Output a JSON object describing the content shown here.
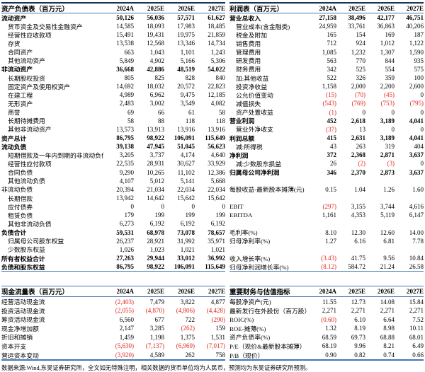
{
  "colors": {
    "rule_dark": "#16365c",
    "rule_blue": "#4176b4",
    "negative_red": "#e0281e"
  },
  "footer": {
    "text": "数据来源:Wind,东吴证券研究所，全文如无特殊注明，相关数据的货币单位均为人民币，预测均为东吴证券研究所预测。"
  },
  "tables": [
    {
      "id": "balance-sheet",
      "title": "资产负债表（百万元）",
      "columns": [
        "2024A",
        "2025E",
        "2026E",
        "2027E"
      ],
      "rows": [
        {
          "label": "流动资产",
          "bold": true,
          "values": [
            "50,126",
            "56,036",
            "57,571",
            "61,627"
          ]
        },
        {
          "label": "货币资金及交易性金融资产",
          "indent": true,
          "values": [
            "14,585",
            "18,093",
            "17,983",
            "18,485"
          ]
        },
        {
          "label": "经营性应收款项",
          "indent": true,
          "values": [
            "15,491",
            "19,431",
            "19,975",
            "21,859"
          ]
        },
        {
          "label": "存货",
          "indent": true,
          "values": [
            "13,538",
            "12,568",
            "13,346",
            "14,734"
          ]
        },
        {
          "label": "合同资产",
          "indent": true,
          "values": [
            "663",
            "1,043",
            "1,101",
            "1,243"
          ]
        },
        {
          "label": "其他流动资产",
          "indent": true,
          "values": [
            "5,849",
            "4,902",
            "5,166",
            "5,306"
          ]
        },
        {
          "label": "非流动资产",
          "bold": true,
          "values": [
            "36,668",
            "42,886",
            "48,519",
            "54,022"
          ]
        },
        {
          "label": "长期股权投资",
          "indent": true,
          "values": [
            "805",
            "825",
            "828",
            "840"
          ]
        },
        {
          "label": "固定资产及使用权资产",
          "indent": true,
          "values": [
            "14,692",
            "18,032",
            "20,572",
            "22,823"
          ]
        },
        {
          "label": "在建工程",
          "indent": true,
          "values": [
            "4,989",
            "6,962",
            "9,475",
            "12,185"
          ]
        },
        {
          "label": "无形资产",
          "indent": true,
          "values": [
            "2,483",
            "3,002",
            "3,549",
            "4,082"
          ]
        },
        {
          "label": "商誉",
          "indent": true,
          "values": [
            "69",
            "66",
            "61",
            "58"
          ]
        },
        {
          "label": "长期待摊费用",
          "indent": true,
          "values": [
            "58",
            "88",
            "118",
            "118"
          ]
        },
        {
          "label": "其他非流动资产",
          "indent": true,
          "values": [
            "13,573",
            "13,913",
            "13,916",
            "13,916"
          ]
        },
        {
          "label": "资产总计",
          "bold": true,
          "values": [
            "86,795",
            "98,922",
            "106,091",
            "115,649"
          ]
        },
        {
          "label": "流动负债",
          "bold": true,
          "values": [
            "39,138",
            "47,945",
            "51,045",
            "56,623"
          ]
        },
        {
          "label": "短期借款及一年内到期的非流动负债",
          "indent": true,
          "values": [
            "3,205",
            "3,737",
            "4,174",
            "4,640"
          ]
        },
        {
          "label": "经营性应付款项",
          "indent": true,
          "values": [
            "22,535",
            "28,931",
            "30,627",
            "33,929"
          ]
        },
        {
          "label": "合同负债",
          "indent": true,
          "values": [
            "9,290",
            "10,265",
            "11,102",
            "12,386"
          ]
        },
        {
          "label": "其他流动负债",
          "indent": true,
          "values": [
            "4,107",
            "5,012",
            "5,141",
            "5,668"
          ]
        },
        {
          "label": "非流动负债",
          "values": [
            "20,394",
            "21,034",
            "22,034",
            "22,034"
          ]
        },
        {
          "label": "长期借款",
          "indent": true,
          "values": [
            "13,942",
            "14,642",
            "15,642",
            "15,642"
          ]
        },
        {
          "label": "应付债券",
          "indent": true,
          "values": [
            "0",
            "0",
            "0",
            "0"
          ]
        },
        {
          "label": "租赁负债",
          "indent": true,
          "values": [
            "179",
            "199",
            "199",
            "199"
          ]
        },
        {
          "label": "其他非流动负债",
          "indent": true,
          "values": [
            "6,273",
            "6,192",
            "6,192",
            "6,192"
          ]
        },
        {
          "label": "负债合计",
          "bold": true,
          "values": [
            "59,531",
            "68,978",
            "73,078",
            "78,657"
          ]
        },
        {
          "label": "归属母公司股东权益",
          "indent": true,
          "values": [
            "26,237",
            "28,921",
            "31,992",
            "35,971"
          ]
        },
        {
          "label": "少数股东权益",
          "indent": true,
          "values": [
            "1,026",
            "1,023",
            "1,021",
            "1,021"
          ]
        },
        {
          "label": "所有者权益合计",
          "bold": true,
          "values": [
            "27,263",
            "29,944",
            "33,012",
            "36,992"
          ]
        },
        {
          "label": "负债和股东权益",
          "bold": true,
          "values": [
            "86,795",
            "98,922",
            "106,091",
            "115,649"
          ]
        }
      ]
    },
    {
      "id": "income-statement",
      "title": "利润表（百万元）",
      "columns": [
        "2024A",
        "2025E",
        "2026E",
        "2027E"
      ],
      "rows": [
        {
          "label": "营业总收入",
          "bold": true,
          "values": [
            "27,158",
            "38,496",
            "42,177",
            "46,751"
          ]
        },
        {
          "label": "营业成本(含金融类)",
          "indent": true,
          "values": [
            "24,959",
            "33,761",
            "36,863",
            "40,206"
          ]
        },
        {
          "label": "税金及附加",
          "indent": true,
          "values": [
            "165",
            "154",
            "169",
            "187"
          ]
        },
        {
          "label": "销售费用",
          "indent": true,
          "values": [
            "712",
            "924",
            "1,012",
            "1,122"
          ]
        },
        {
          "label": "管理费用",
          "indent": true,
          "values": [
            "1,085",
            "1,232",
            "1,307",
            "1,590"
          ]
        },
        {
          "label": "研发费用",
          "indent": true,
          "values": [
            "563",
            "770",
            "844",
            "935"
          ]
        },
        {
          "label": "财务费用",
          "indent": true,
          "values": [
            "342",
            "525",
            "554",
            "575"
          ]
        },
        {
          "label": "加:其他收益",
          "indent": true,
          "values": [
            "522",
            "326",
            "359",
            "100"
          ]
        },
        {
          "label": "投资净收益",
          "indent": true,
          "values": [
            "1,158",
            "2,000",
            "2,200",
            "2,600"
          ]
        },
        {
          "label": "公允价值变动",
          "indent": true,
          "values": [
            "(15)",
            "(70)",
            "(45)",
            "0"
          ]
        },
        {
          "label": "减值损失",
          "indent": true,
          "values": [
            "(543)",
            "(769)",
            "(753)",
            "(795)"
          ]
        },
        {
          "label": "资产处置收益",
          "indent": true,
          "values": [
            "(1)",
            "0",
            "0",
            "0"
          ]
        },
        {
          "label": "营业利润",
          "bold": true,
          "values": [
            "452",
            "2,618",
            "3,189",
            "4,041"
          ]
        },
        {
          "label": "营业外净收支",
          "indent": true,
          "values": [
            "(37)",
            "13",
            "0",
            "0"
          ]
        },
        {
          "label": "利润总额",
          "bold": true,
          "values": [
            "415",
            "2,631",
            "3,189",
            "4,041"
          ]
        },
        {
          "label": "减:所得税",
          "indent": true,
          "values": [
            "43",
            "263",
            "319",
            "404"
          ]
        },
        {
          "label": "净利润",
          "bold": true,
          "values": [
            "372",
            "2,368",
            "2,871",
            "3,637"
          ]
        },
        {
          "label": "减:少数股东损益",
          "indent": true,
          "values": [
            "26",
            "(2)",
            "(3)",
            "0"
          ]
        },
        {
          "label": "归属母公司净利润",
          "bold": true,
          "values": [
            "346",
            "2,370",
            "2,873",
            "3,637"
          ]
        },
        {
          "label": "",
          "values": [
            "",
            "",
            "",
            ""
          ]
        },
        {
          "label": "每股收益-最新股本摊薄(元)",
          "values": [
            "0.15",
            "1.04",
            "1.26",
            "1.60"
          ]
        },
        {
          "label": "",
          "values": [
            "",
            "",
            "",
            ""
          ]
        },
        {
          "label": "EBIT",
          "values": [
            "(297)",
            "3,155",
            "3,744",
            "4,616"
          ]
        },
        {
          "label": "EBITDA",
          "values": [
            "1,161",
            "4,353",
            "5,119",
            "6,147"
          ]
        },
        {
          "label": "",
          "values": [
            "",
            "",
            "",
            ""
          ]
        },
        {
          "label": "毛利率(%)",
          "values": [
            "8.10",
            "12.30",
            "12.60",
            "14.00"
          ]
        },
        {
          "label": "归母净利率(%)",
          "values": [
            "1.27",
            "6.16",
            "6.81",
            "7.78"
          ]
        },
        {
          "label": "",
          "values": [
            "",
            "",
            "",
            ""
          ]
        },
        {
          "label": "收入增长率(%)",
          "values": [
            "(3.43)",
            "41.75",
            "9.56",
            "10.84"
          ]
        },
        {
          "label": "归母净利润增长率(%)",
          "values": [
            "(8.12)",
            "584.72",
            "21.24",
            "26.58"
          ]
        }
      ]
    },
    {
      "id": "cash-flow",
      "title": "现金流量表（百万元）",
      "columns": [
        "2024A",
        "2025E",
        "2026E",
        "2027E"
      ],
      "rows": [
        {
          "label": "经营活动现金流",
          "values": [
            "(2,403)",
            "7,479",
            "3,822",
            "4,877"
          ]
        },
        {
          "label": "投资活动现金流",
          "values": [
            "(2,055)",
            "(4,870)",
            "(4,806)",
            "(4,428)"
          ]
        },
        {
          "label": "筹资活动现金流",
          "values": [
            "6,560",
            "677",
            "722",
            "(290)"
          ]
        },
        {
          "label": "现金净增加额",
          "values": [
            "2,147",
            "3,285",
            "(262)",
            "159"
          ]
        },
        {
          "label": "折旧和摊销",
          "values": [
            "1,459",
            "1,198",
            "1,375",
            "1,531"
          ]
        },
        {
          "label": "资本开支",
          "values": [
            "(5,630)",
            "(7,137)",
            "(6,969)",
            "(7,017)"
          ]
        },
        {
          "label": "营运资本变动",
          "values": [
            "(3,920)",
            "4,589",
            "262",
            "758"
          ]
        }
      ]
    },
    {
      "id": "key-metrics",
      "title": "重要财务与估值指标",
      "columns": [
        "2024A",
        "2025E",
        "2026E",
        "2027E"
      ],
      "rows": [
        {
          "label": "每股净资产(元)",
          "values": [
            "11.55",
            "12.73",
            "14.08",
            "15.84"
          ]
        },
        {
          "label": "最新发行在外股份（百万股）",
          "values": [
            "2,271",
            "2,271",
            "2,271",
            "2,271"
          ]
        },
        {
          "label": "ROIC(%)",
          "values": [
            "(0.60)",
            "6.10",
            "6.64",
            "7.52"
          ]
        },
        {
          "label": "ROE-摊薄(%)",
          "values": [
            "1.32",
            "8.19",
            "8.98",
            "10.11"
          ]
        },
        {
          "label": "资产负债率(%)",
          "values": [
            "68.59",
            "69.73",
            "68.88",
            "68.01"
          ]
        },
        {
          "label": "P/E（现价&最新股本摊薄）",
          "values": [
            "68.19",
            "9.96",
            "8.21",
            "6.49"
          ]
        },
        {
          "label": "P/B（现价）",
          "values": [
            "0.90",
            "0.82",
            "0.74",
            "0.66"
          ]
        }
      ]
    }
  ]
}
